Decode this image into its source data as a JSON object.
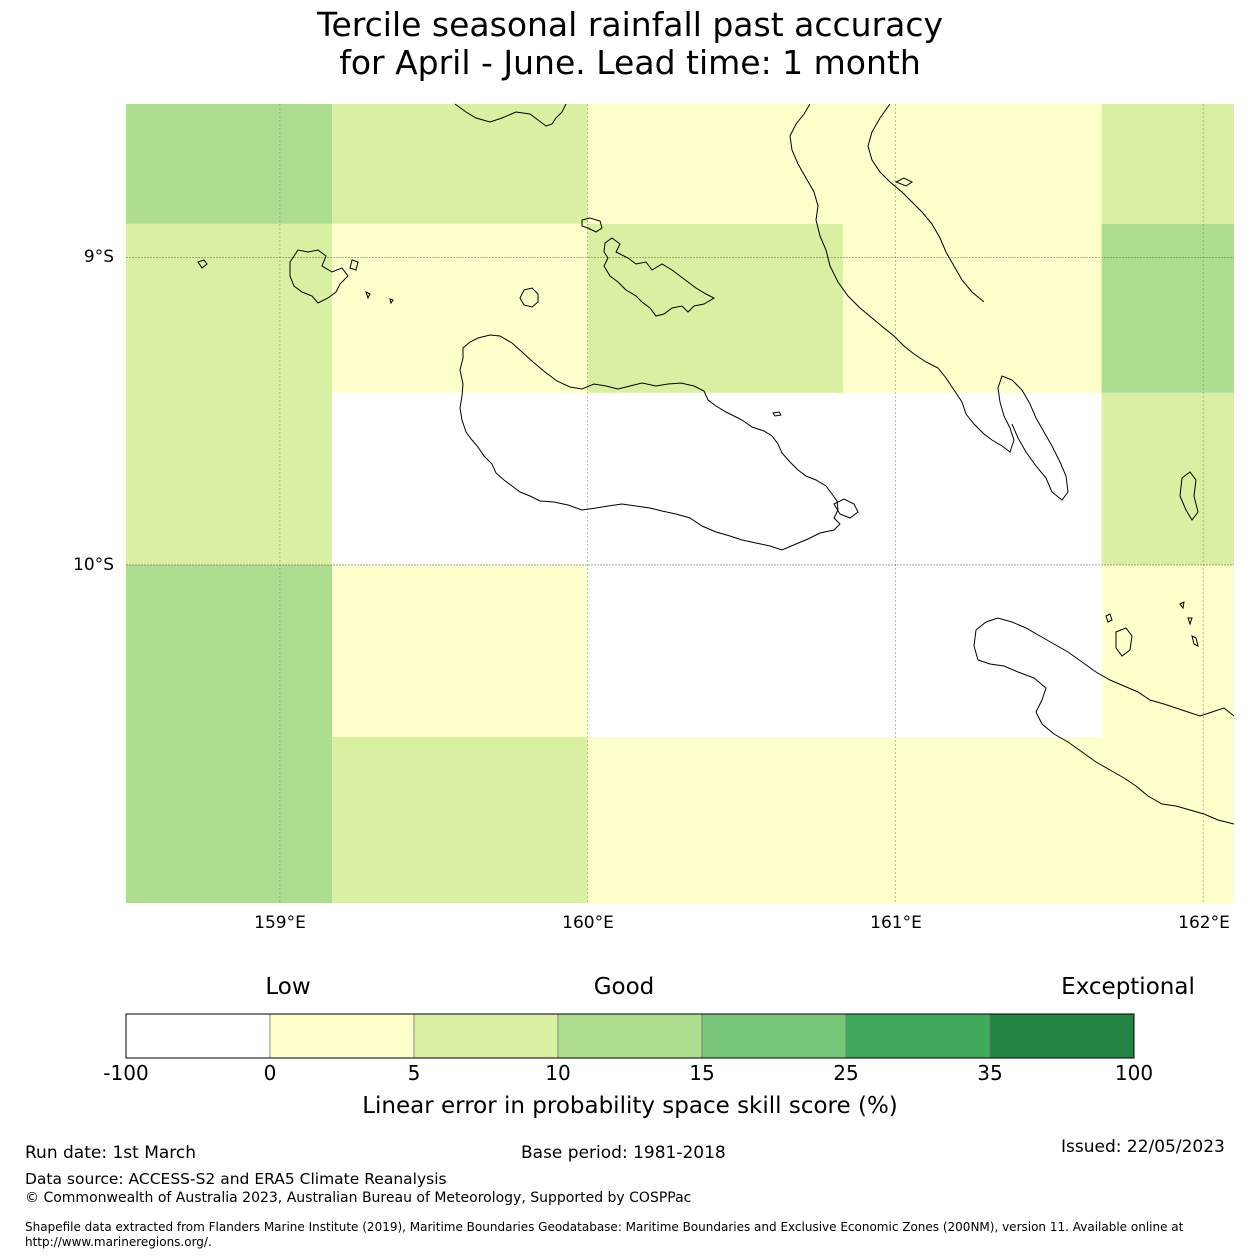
{
  "title": {
    "line1": "Tercile seasonal rainfall past accuracy",
    "line2": "for April - June. Lead time: 1 month"
  },
  "map": {
    "lat_labels": [
      "9°S",
      "10°S"
    ],
    "lon_labels": [
      "159°E",
      "160°E",
      "161°E",
      "162°E"
    ],
    "extent": {
      "lon_min": 158.5,
      "lon_max": 162.1,
      "lat_min": -11.1,
      "lat_max": -8.5
    },
    "grid": {
      "lons": [
        159,
        160,
        161,
        162
      ],
      "lats": [
        -9,
        -10
      ]
    },
    "cells": [
      {
        "lon": [
          158.5,
          159.17
        ],
        "lat": [
          -8.89,
          -8.5
        ],
        "category": "10-15"
      },
      {
        "lon": [
          159.17,
          160.0
        ],
        "lat": [
          -8.89,
          -8.5
        ],
        "category": "5-10"
      },
      {
        "lon": [
          160.0,
          161.67
        ],
        "lat": [
          -8.89,
          -8.5
        ],
        "category": "0-5"
      },
      {
        "lon": [
          161.67,
          162.1
        ],
        "lat": [
          -8.89,
          -8.5
        ],
        "category": "5-10"
      },
      {
        "lon": [
          158.5,
          159.17
        ],
        "lat": [
          -10.0,
          -8.89
        ],
        "category": "5-10"
      },
      {
        "lon": [
          159.17,
          160.0
        ],
        "lat": [
          -9.44,
          -8.89
        ],
        "category": "0-5"
      },
      {
        "lon": [
          160.0,
          160.83
        ],
        "lat": [
          -9.44,
          -8.89
        ],
        "category": "5-10"
      },
      {
        "lon": [
          160.83,
          161.67
        ],
        "lat": [
          -9.44,
          -8.89
        ],
        "category": "0-5"
      },
      {
        "lon": [
          161.67,
          162.1
        ],
        "lat": [
          -9.44,
          -8.89
        ],
        "category": "10-15"
      },
      {
        "lon": [
          159.17,
          161.67
        ],
        "lat": [
          -10.0,
          -9.44
        ],
        "category": "-100-0"
      },
      {
        "lon": [
          161.67,
          162.1
        ],
        "lat": [
          -10.0,
          -9.44
        ],
        "category": "5-10"
      },
      {
        "lon": [
          158.5,
          159.17
        ],
        "lat": [
          -11.1,
          -10.0
        ],
        "category": "10-15"
      },
      {
        "lon": [
          159.17,
          160.0
        ],
        "lat": [
          -10.56,
          -10.0
        ],
        "category": "0-5"
      },
      {
        "lon": [
          160.0,
          161.67
        ],
        "lat": [
          -10.56,
          -10.0
        ],
        "category": "-100-0"
      },
      {
        "lon": [
          161.67,
          162.1
        ],
        "lat": [
          -10.56,
          -10.0
        ],
        "category": "0-5"
      },
      {
        "lon": [
          159.17,
          160.0
        ],
        "lat": [
          -11.1,
          -10.56
        ],
        "category": "5-10"
      },
      {
        "lon": [
          160.0,
          162.1
        ],
        "lat": [
          -11.1,
          -10.56
        ],
        "category": "0-5"
      }
    ]
  },
  "legend": {
    "qualitative": [
      "Low",
      "Good",
      "Exceptional"
    ],
    "ticks": [
      "-100",
      "0",
      "5",
      "10",
      "15",
      "25",
      "35",
      "100"
    ],
    "colors": [
      "#ffffff",
      "#ffffcc",
      "#d9f0a3",
      "#addd8e",
      "#78c679",
      "#41ab5d",
      "#238443"
    ],
    "label": "Linear error in probability space skill score (%)"
  },
  "footer": {
    "run_date": "Run date: 1st March",
    "base_period": "Base period: 1981-2018",
    "issued": "Issued: 22/05/2023",
    "data_source": "Data source: ACCESS-S2 and ERA5 Climate Reanalysis",
    "copyright": "© Commonwealth of Australia 2023, Australian Bureau of Meteorology, Supported by COSPPac",
    "shapefile": "Shapefile data extracted from Flanders Marine Institute (2019), Maritime Boundaries Geodatabase: Maritime Boundaries and Exclusive Economic Zones (200NM), version 11. Available online at http://www.marineregions.org/."
  }
}
